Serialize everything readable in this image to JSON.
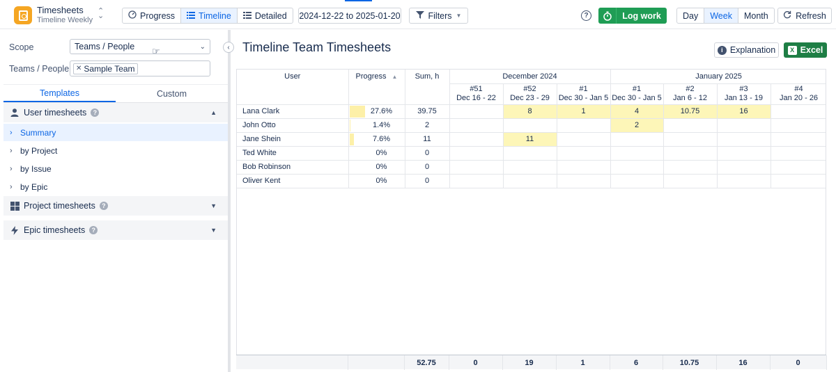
{
  "header": {
    "app_title": "Timesheets",
    "app_subtitle": "Timeline Weekly",
    "view_tabs": [
      {
        "label": "Progress",
        "active": false
      },
      {
        "label": "Timeline",
        "active": true
      },
      {
        "label": "Detailed",
        "active": false
      }
    ],
    "date_range": "2024-12-22 to 2025-01-20",
    "filters_label": "Filters",
    "help_glyph": "?",
    "log_work_label": "Log work",
    "granularity": [
      {
        "label": "Day",
        "active": false
      },
      {
        "label": "Week",
        "active": true
      },
      {
        "label": "Month",
        "active": false
      }
    ],
    "refresh_label": "Refresh"
  },
  "sidebar": {
    "scope_label": "Scope",
    "scope_value": "Teams / People",
    "teams_label": "Teams / People",
    "teams_tag": "Sample Team",
    "tabs": [
      {
        "label": "Templates",
        "active": true
      },
      {
        "label": "Custom",
        "active": false
      }
    ],
    "sections": {
      "user": "User timesheets",
      "project": "Project timesheets",
      "epic": "Epic timesheets"
    },
    "user_templates": [
      {
        "label": "Summary",
        "active": true
      },
      {
        "label": "by Project",
        "active": false
      },
      {
        "label": "by Issue",
        "active": false
      },
      {
        "label": "by Epic",
        "active": false
      }
    ]
  },
  "main": {
    "title": "Timeline Team Timesheets",
    "explanation_label": "Explanation",
    "excel_label": "Excel",
    "columns": {
      "user": "User",
      "progress": "Progress",
      "sum": "Sum, h",
      "months": [
        {
          "label": "December 2024",
          "span": 3
        },
        {
          "label": "January 2025",
          "span": 4
        }
      ],
      "weeks": [
        {
          "num": "#51",
          "range": "Dec 16 - 22"
        },
        {
          "num": "#52",
          "range": "Dec 23 - 29"
        },
        {
          "num": "#1",
          "range": "Dec 30 - Jan 5"
        },
        {
          "num": "#1",
          "range": "Dec 30 - Jan 5"
        },
        {
          "num": "#2",
          "range": "Jan 6 - 12"
        },
        {
          "num": "#3",
          "range": "Jan 13 - 19"
        },
        {
          "num": "#4",
          "range": "Jan 20 - 26"
        }
      ]
    },
    "rows": [
      {
        "user": "Lana Clark",
        "progress": "27.6%",
        "progress_fraction": 0.276,
        "sum": "39.75",
        "weeks": [
          "",
          "8",
          "1",
          "4",
          "10.75",
          "16",
          ""
        ]
      },
      {
        "user": "John Otto",
        "progress": "1.4%",
        "progress_fraction": 0.014,
        "sum": "2",
        "weeks": [
          "",
          "",
          "",
          "2",
          "",
          "",
          ""
        ]
      },
      {
        "user": "Jane Shein",
        "progress": "7.6%",
        "progress_fraction": 0.076,
        "sum": "11",
        "weeks": [
          "",
          "11",
          "",
          "",
          "",
          "",
          ""
        ]
      },
      {
        "user": "Ted White",
        "progress": "0%",
        "progress_fraction": 0,
        "sum": "0",
        "weeks": [
          "",
          "",
          "",
          "",
          "",
          "",
          ""
        ]
      },
      {
        "user": "Bob Robinson",
        "progress": "0%",
        "progress_fraction": 0,
        "sum": "0",
        "weeks": [
          "",
          "",
          "",
          "",
          "",
          "",
          ""
        ]
      },
      {
        "user": "Oliver Kent",
        "progress": "0%",
        "progress_fraction": 0,
        "sum": "0",
        "weeks": [
          "",
          "",
          "",
          "",
          "",
          "",
          ""
        ]
      }
    ],
    "totals": {
      "sum": "52.75",
      "weeks": [
        "0",
        "19",
        "1",
        "6",
        "10.75",
        "16",
        "0"
      ]
    },
    "highlight_color": "#fdf6b8"
  }
}
